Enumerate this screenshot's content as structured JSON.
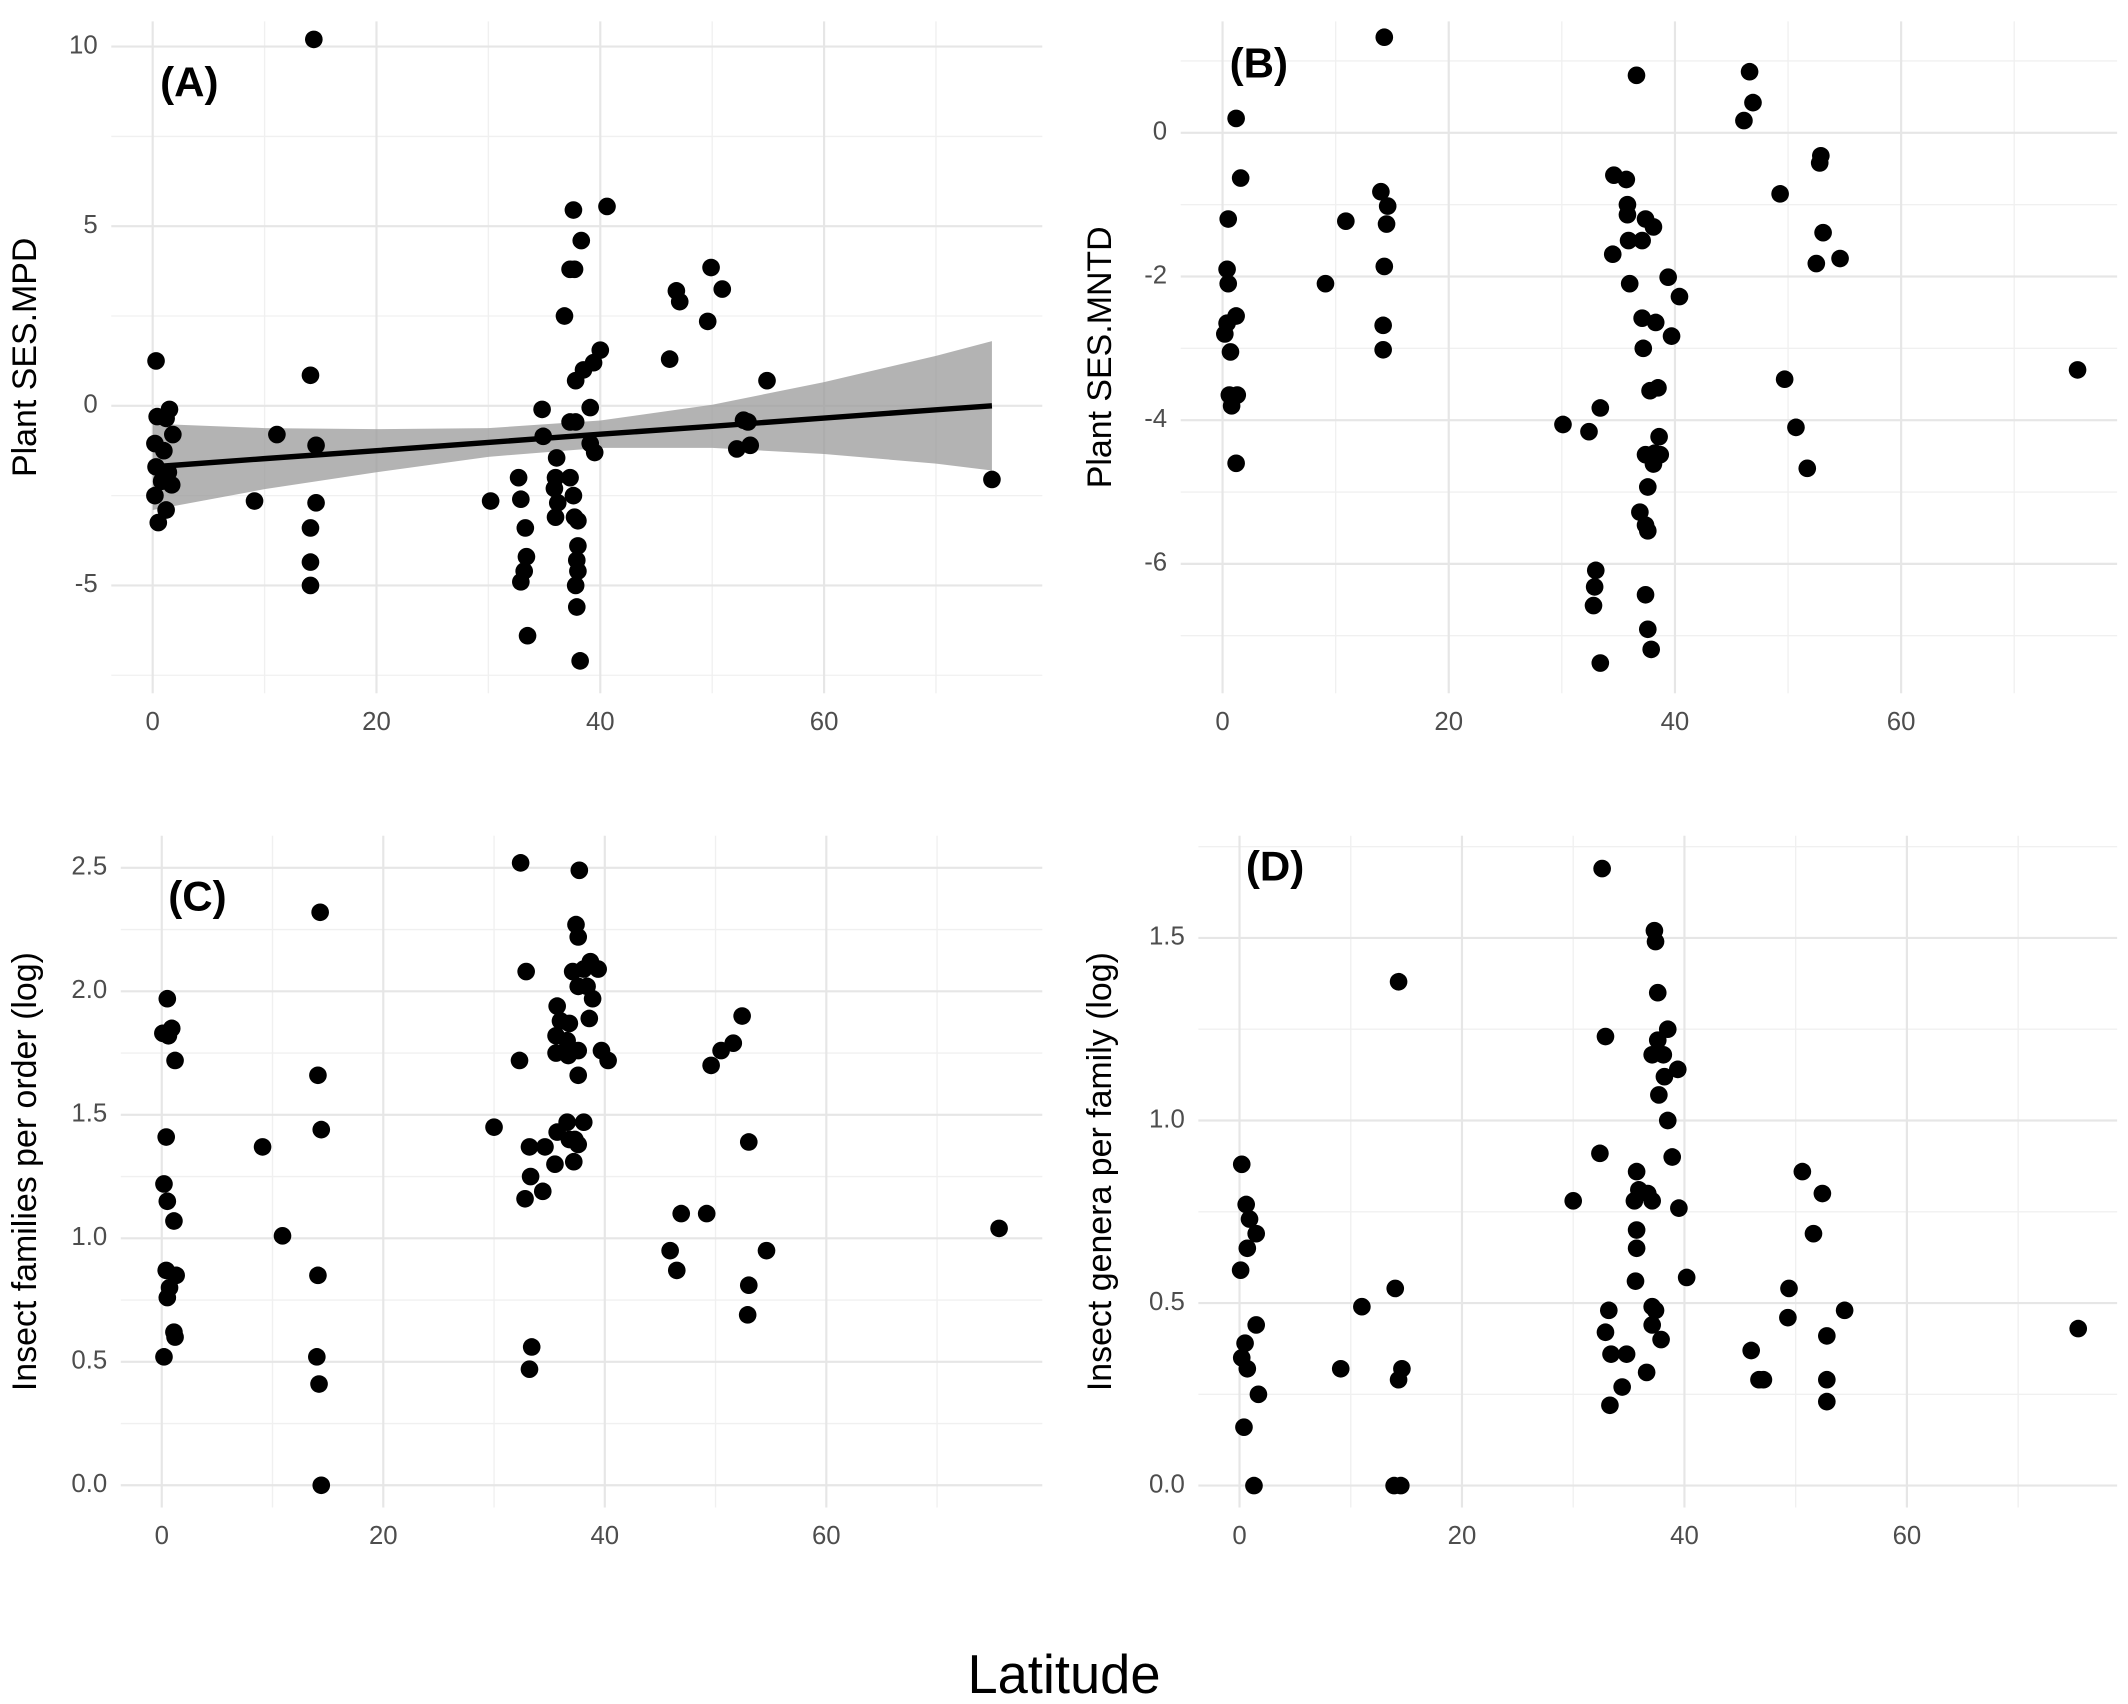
{
  "xlabel": "Latitude",
  "chart_data": [
    {
      "type": "scatter",
      "title": "(A)",
      "ylabel": "Plant SES.MPD",
      "color": "#000000",
      "grid": true,
      "xlim": [
        -3.7,
        79.5
      ],
      "xticks": [
        0,
        20,
        40,
        60
      ],
      "xminor": [
        10,
        30,
        50,
        70
      ],
      "ylim": [
        -8,
        10.7
      ],
      "yticks": [
        -5,
        0,
        5,
        10
      ],
      "yminor": [
        -7.5,
        -2.5,
        2.5,
        7.5
      ],
      "x": [
        0.3,
        0.4,
        1.5,
        1.2,
        1.8,
        0.2,
        1.0,
        0.3,
        1.4,
        0.8,
        1.7,
        0.2,
        1.2,
        0.5,
        14.4,
        14.1,
        14.6,
        14.6,
        14.1,
        14.1,
        14.1,
        11.1,
        9.1,
        30.2,
        32.7,
        32.9,
        33.3,
        33.4,
        33.2,
        32.9,
        33.5,
        37.6,
        40.6,
        38.3,
        37.3,
        37.7,
        36.8,
        40.0,
        39.4,
        38.5,
        37.8,
        34.8,
        39.1,
        37.3,
        37.8,
        34.9,
        39.1,
        39.5,
        36.1,
        36.0,
        37.3,
        35.9,
        36.2,
        36.0,
        37.6,
        37.7,
        38.0,
        38.0,
        37.9,
        38.0,
        37.8,
        37.9,
        38.2,
        46.2,
        46.8,
        47.1,
        49.9,
        50.9,
        49.6,
        54.9,
        52.8,
        53.2,
        53.4,
        52.2,
        75
      ],
      "values": [
        1.25,
        -0.3,
        -0.1,
        -0.35,
        -0.8,
        -1.05,
        -1.25,
        -1.7,
        -1.85,
        -2.1,
        -2.2,
        -2.5,
        -2.9,
        -3.25,
        10.2,
        0.85,
        -1.1,
        -2.7,
        -3.4,
        -4.35,
        -5.0,
        -0.8,
        -2.65,
        -2.65,
        -2.0,
        -2.6,
        -3.4,
        -4.2,
        -4.6,
        -4.9,
        -6.4,
        5.45,
        5.55,
        4.6,
        3.8,
        3.8,
        2.5,
        1.55,
        1.2,
        1.0,
        0.7,
        -0.1,
        -0.05,
        -0.45,
        -0.45,
        -0.85,
        -1.05,
        -1.3,
        -1.45,
        -2.0,
        -2.0,
        -2.3,
        -2.7,
        -3.1,
        -2.5,
        -3.1,
        -3.2,
        -3.9,
        -4.3,
        -4.6,
        -5.0,
        -5.6,
        -7.1,
        1.3,
        3.2,
        2.9,
        3.85,
        3.25,
        2.35,
        0.7,
        -0.4,
        -0.45,
        -1.1,
        -1.2,
        -2.05
      ],
      "fit": {
        "color": "#000000",
        "band_color": "#999999",
        "x": [
          0,
          10,
          20,
          30,
          40,
          50,
          60,
          70,
          75
        ],
        "values": [
          -1.7,
          -1.47,
          -1.25,
          -1.02,
          -0.79,
          -0.57,
          -0.34,
          -0.11,
          0
        ],
        "upper": [
          -0.5,
          -0.62,
          -0.65,
          -0.62,
          -0.41,
          0.03,
          0.66,
          1.39,
          1.8
        ],
        "lower": [
          -2.9,
          -2.32,
          -1.85,
          -1.42,
          -1.17,
          -1.17,
          -1.34,
          -1.61,
          -1.8
        ]
      }
    },
    {
      "type": "scatter",
      "title": "(B)",
      "ylabel": "Plant SES.MNTD",
      "color": "#000000",
      "grid": true,
      "xlim": [
        -3.7,
        79.1
      ],
      "xticks": [
        0,
        20,
        40,
        60
      ],
      "xminor": [
        10,
        30,
        50,
        70
      ],
      "ylim": [
        -7.8,
        1.55
      ],
      "yticks": [
        -6,
        -4,
        -2,
        0
      ],
      "yminor": [
        -7,
        -5,
        -3,
        -1,
        1
      ],
      "x": [
        14.3,
        1.2,
        1.6,
        0.5,
        0.4,
        0.5,
        1.2,
        0.4,
        0.2,
        0.7,
        0.6,
        1.3,
        0.8,
        1.2,
        9.1,
        10.9,
        14.0,
        14.6,
        14.5,
        14.3,
        14.2,
        14.2,
        30.1,
        32.4,
        33.4,
        33.0,
        32.9,
        32.8,
        33.4,
        36.6,
        34.6,
        35.7,
        35.8,
        35.8,
        34.5,
        35.9,
        37.1,
        37.4,
        38.1,
        36.0,
        39.4,
        40.4,
        37.1,
        38.3,
        39.7,
        37.2,
        38.5,
        37.8,
        38.6,
        38.2,
        37.4,
        38.7,
        38.1,
        37.6,
        36.9,
        37.4,
        37.6,
        37.4,
        37.6,
        37.9,
        46.6,
        46.9,
        46.1,
        52.9,
        52.8,
        49.3,
        53.1,
        54.6,
        52.5,
        49.7,
        50.7,
        51.7,
        75.6
      ],
      "values": [
        1.33,
        0.2,
        -0.63,
        -1.2,
        -1.9,
        -2.1,
        -2.55,
        -2.65,
        -2.8,
        -3.05,
        -3.65,
        -3.65,
        -3.8,
        -4.6,
        -2.1,
        -1.23,
        -0.82,
        -1.02,
        -1.27,
        -1.86,
        -2.68,
        -3.02,
        -4.06,
        -4.16,
        -3.83,
        -6.09,
        -6.32,
        -6.58,
        -7.38,
        0.8,
        -0.59,
        -0.65,
        -1.0,
        -1.14,
        -1.69,
        -1.5,
        -1.5,
        -1.2,
        -1.31,
        -2.1,
        -2.01,
        -2.28,
        -2.58,
        -2.64,
        -2.83,
        -3.0,
        -3.55,
        -3.59,
        -4.23,
        -4.46,
        -4.48,
        -4.48,
        -4.61,
        -4.93,
        -5.28,
        -5.46,
        -5.54,
        -6.43,
        -6.91,
        -7.19,
        0.85,
        0.42,
        0.17,
        -0.32,
        -0.42,
        -0.85,
        -1.39,
        -1.75,
        -1.82,
        -3.43,
        -4.1,
        -4.67,
        -3.3
      ]
    },
    {
      "type": "scatter",
      "title": "(C)",
      "ylabel": "Insect families per order (log)",
      "color": "#000000",
      "grid": true,
      "xlim": [
        -3.7,
        79.5
      ],
      "xticks": [
        0,
        20,
        40,
        60
      ],
      "xminor": [
        10,
        30,
        50,
        70
      ],
      "ylim": [
        -0.09,
        2.63
      ],
      "yticks": [
        {
          "value": 0,
          "label": "0.0"
        },
        0.5,
        {
          "value": 1,
          "label": "1.0"
        },
        1.5,
        {
          "value": 2,
          "label": "2.0"
        },
        2.5
      ],
      "yminor": [
        0.25,
        0.75,
        1.25,
        1.75,
        2.25
      ],
      "x": [
        0.5,
        0.1,
        0.6,
        0.9,
        1.2,
        0.4,
        0.2,
        0.5,
        1.1,
        0.4,
        1.3,
        0.7,
        0.5,
        1.1,
        1.2,
        0.2,
        9.1,
        10.9,
        14.3,
        14.1,
        14.4,
        14.1,
        14.0,
        14.2,
        14.4,
        30.0,
        32.4,
        32.9,
        32.3,
        33.2,
        33.3,
        32.8,
        33.4,
        33.2,
        34.4,
        34.6,
        37.7,
        37.4,
        37.6,
        38.1,
        38.7,
        39.4,
        37.1,
        37.6,
        38.4,
        38.9,
        38.6,
        35.7,
        36.0,
        36.8,
        35.6,
        36.6,
        37.6,
        39.7,
        40.3,
        35.6,
        36.7,
        37.6,
        36.6,
        38.1,
        35.7,
        36.8,
        37.3,
        37.6,
        35.5,
        37.2,
        45.9,
        46.5,
        46.9,
        49.2,
        49.6,
        50.5,
        51.6,
        52.4,
        53.0,
        53.0,
        52.9,
        54.6,
        75.6
      ],
      "values": [
        1.97,
        1.83,
        1.82,
        1.85,
        1.72,
        1.41,
        1.22,
        1.15,
        1.07,
        0.87,
        0.85,
        0.8,
        0.76,
        0.62,
        0.6,
        0.52,
        1.37,
        1.01,
        2.32,
        1.66,
        1.44,
        0.85,
        0.52,
        0.41,
        0.0,
        1.45,
        2.52,
        2.08,
        1.72,
        1.37,
        1.25,
        1.16,
        0.56,
        0.47,
        1.19,
        1.37,
        2.49,
        2.27,
        2.22,
        2.09,
        2.12,
        2.09,
        2.08,
        2.02,
        2.02,
        1.97,
        1.89,
        1.94,
        1.88,
        1.87,
        1.82,
        1.8,
        1.76,
        1.76,
        1.72,
        1.75,
        1.74,
        1.66,
        1.47,
        1.47,
        1.43,
        1.4,
        1.4,
        1.38,
        1.3,
        1.31,
        0.95,
        0.87,
        1.1,
        1.1,
        1.7,
        1.76,
        1.79,
        1.9,
        1.39,
        0.81,
        0.69,
        0.95,
        1.04
      ]
    },
    {
      "type": "scatter",
      "title": "(D)",
      "ylabel": "Insect genera per family (log)",
      "color": "#000000",
      "grid": true,
      "xlim": [
        -3.7,
        78.9
      ],
      "xticks": [
        0,
        20,
        40,
        60
      ],
      "xminor": [
        10,
        30,
        50,
        70
      ],
      "ylim": [
        -0.06,
        1.78
      ],
      "yticks": [
        {
          "value": 0,
          "label": "0.0"
        },
        0.5,
        {
          "value": 1,
          "label": "1.0"
        },
        1.5
      ],
      "yminor": [
        0.25,
        0.75,
        1.25,
        1.75
      ],
      "x": [
        32.6,
        14.3,
        32.9,
        37.3,
        37.4,
        37.6,
        38.5,
        37.6,
        37.1,
        38.1,
        39.4,
        38.2,
        37.7,
        38.5,
        38.9,
        32.4,
        35.7,
        35.9,
        36.7,
        35.5,
        37.1,
        30.0,
        39.5,
        35.7,
        35.7,
        35.6,
        40.2,
        37.1,
        37.4,
        33.2,
        37.1,
        32.9,
        37.9,
        33.4,
        34.8,
        36.6,
        34.4,
        33.3,
        0.2,
        0.6,
        0.9,
        1.5,
        0.7,
        0.1,
        1.5,
        0.5,
        0.2,
        0.7,
        1.7,
        0.4,
        1.3,
        11.0,
        9.1,
        14.0,
        14.6,
        14.3,
        13.9,
        14.5,
        46.0,
        46.7,
        47.1,
        49.4,
        49.3,
        50.6,
        52.4,
        51.6,
        54.4,
        52.8,
        52.8,
        52.8,
        75.4
      ],
      "values": [
        1.69,
        1.38,
        1.23,
        1.52,
        1.49,
        1.35,
        1.25,
        1.22,
        1.18,
        1.18,
        1.14,
        1.12,
        1.07,
        1.0,
        0.9,
        0.91,
        0.86,
        0.81,
        0.8,
        0.78,
        0.78,
        0.78,
        0.76,
        0.7,
        0.65,
        0.56,
        0.57,
        0.49,
        0.48,
        0.48,
        0.44,
        0.42,
        0.4,
        0.36,
        0.36,
        0.31,
        0.27,
        0.22,
        0.88,
        0.77,
        0.73,
        0.69,
        0.65,
        0.59,
        0.44,
        0.39,
        0.35,
        0.32,
        0.25,
        0.16,
        0.0,
        0.49,
        0.32,
        0.54,
        0.32,
        0.29,
        0.0,
        0.0,
        0.37,
        0.29,
        0.29,
        0.54,
        0.46,
        0.86,
        0.8,
        0.69,
        0.48,
        0.41,
        0.29,
        0.23,
        0.43
      ]
    }
  ]
}
